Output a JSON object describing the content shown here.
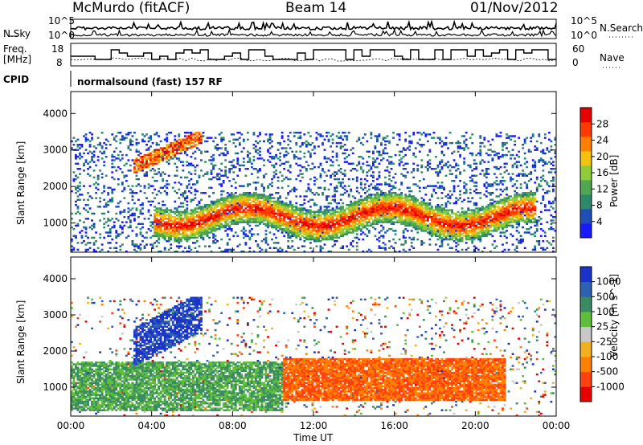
{
  "header": {
    "station": "McMurdo (fitACF)",
    "beam": "Beam 14",
    "date": "01/Nov/2012"
  },
  "aux_panels": {
    "nsky_label": "N.Sky",
    "nsky_ticks": [
      "10^5",
      "10^0"
    ],
    "nsearch_label": "N.Search",
    "nsearch_ticks": [
      "10^5",
      "10^0"
    ],
    "freq_label_line1": "Freq.",
    "freq_label_line2": "[MHz]",
    "freq_ticks": [
      "18",
      "8"
    ],
    "nave_label": "Nave",
    "nave_ticks": [
      "60",
      "0"
    ],
    "cpid_label": "CPID",
    "cpid_text": "normalsound (fast) 157 RF"
  },
  "chart_data": [
    {
      "type": "heatmap",
      "name": "power_panel",
      "ylabel": "Slant Range [km]",
      "yticks": [
        "1000",
        "2000",
        "3000",
        "4000"
      ],
      "ylim": [
        200,
        4600
      ],
      "xticks": [
        "00:00",
        "04:00",
        "08:00",
        "12:00",
        "16:00",
        "20:00",
        "00:00"
      ],
      "colorbar_label": "Power [dB]",
      "colorbar_ticks": [
        "28",
        "24",
        "20",
        "16",
        "12",
        "8",
        "4"
      ],
      "colors": [
        "#1a1aff",
        "#1f4fb5",
        "#2c8a6b",
        "#4fa84f",
        "#8fcc3a",
        "#f2c20e",
        "#ff7f00",
        "#ff3b00",
        "#e60000"
      ],
      "features": [
        {
          "t0": 0.5,
          "t1": 6.2,
          "r0": 300,
          "r1": 2900,
          "level": "weak"
        },
        {
          "t0": 3.0,
          "t1": 6.5,
          "r0": 2300,
          "r1": 3500,
          "level": "strong"
        },
        {
          "t0": 4.0,
          "t1": 23.0,
          "r0": 700,
          "r1": 1800,
          "level": "strong"
        },
        {
          "t0": 0.2,
          "t1": 24.0,
          "r0": 200,
          "r1": 3500,
          "level": "scatter"
        }
      ]
    },
    {
      "type": "heatmap",
      "name": "velocity_panel",
      "ylabel": "Slant Range [km]",
      "yticks": [
        "1000",
        "2000",
        "3000",
        "4000"
      ],
      "ylim": [
        200,
        4600
      ],
      "xticks": [
        "00:00",
        "04:00",
        "08:00",
        "12:00",
        "16:00",
        "20:00",
        "00:00"
      ],
      "xlabel": "Time UT",
      "colorbar_label": "Velocity [m s^-1]",
      "colorbar_ticks": [
        "1000",
        "500",
        "100",
        "25",
        "-25",
        "-100",
        "-500",
        "-1000"
      ],
      "colors": [
        "#1a33c8",
        "#2f61b3",
        "#3a8a63",
        "#5fbf3a",
        "#c8c8c8",
        "#f2b020",
        "#ff7f00",
        "#ff4010",
        "#e60000"
      ],
      "features": [
        {
          "t0": 0.0,
          "t1": 10.5,
          "r0": 300,
          "r1": 1700,
          "level": "green"
        },
        {
          "t0": 3.0,
          "t1": 6.5,
          "r0": 1500,
          "r1": 3500,
          "level": "blue"
        },
        {
          "t0": 10.5,
          "t1": 21.5,
          "r0": 600,
          "r1": 1800,
          "level": "orange"
        }
      ]
    }
  ]
}
